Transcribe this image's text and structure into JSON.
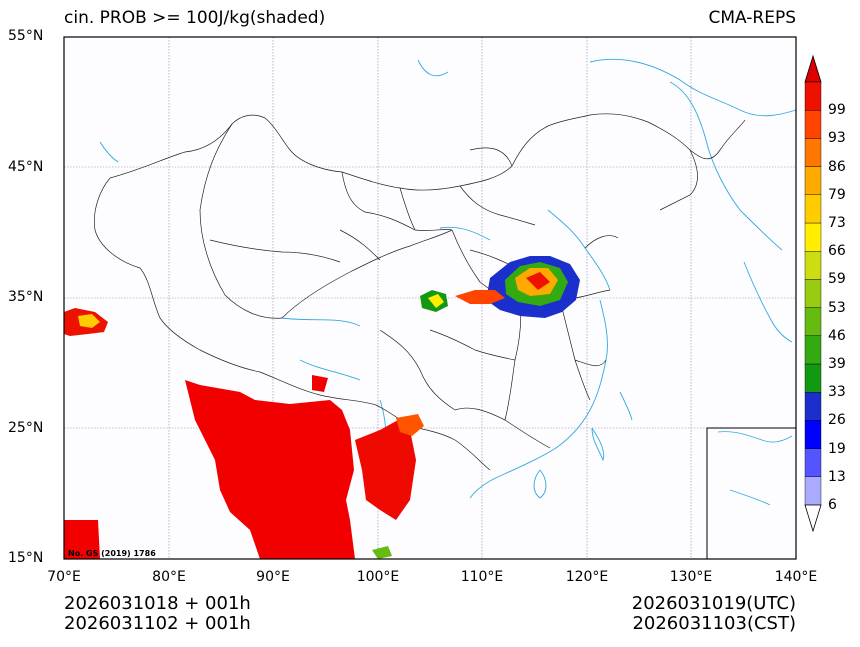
{
  "header": {
    "title_left": "cin. PROB >= 100J/kg(shaded)",
    "title_right": "CMA-REPS"
  },
  "map": {
    "lat_ticks": [
      "55°N",
      "45°N",
      "35°N",
      "25°N",
      "15°N"
    ],
    "lon_ticks": [
      "70°E",
      "80°E",
      "90°E",
      "100°E",
      "110°E",
      "120°E",
      "130°E",
      "140°E"
    ],
    "watermark": "No. GS (2019) 1786"
  },
  "colorbar": {
    "levels": [
      "6",
      "13",
      "19",
      "26",
      "33",
      "39",
      "46",
      "53",
      "59",
      "66",
      "73",
      "79",
      "86",
      "93",
      "99"
    ],
    "colors": [
      "#aaaaff",
      "#5555ff",
      "#0000ff",
      "#1a2fcc",
      "#119911",
      "#33aa11",
      "#66bb11",
      "#99cc11",
      "#ccdd11",
      "#ffee00",
      "#ffcc00",
      "#ffaa00",
      "#ff7700",
      "#ff4400",
      "#ee1100"
    ]
  },
  "footer": {
    "init_utc": "2026031018  +  001h",
    "init_cst": "2026031102  +  001h",
    "valid_utc": "2026031019(UTC)",
    "valid_cst": "2026031103(CST)"
  }
}
